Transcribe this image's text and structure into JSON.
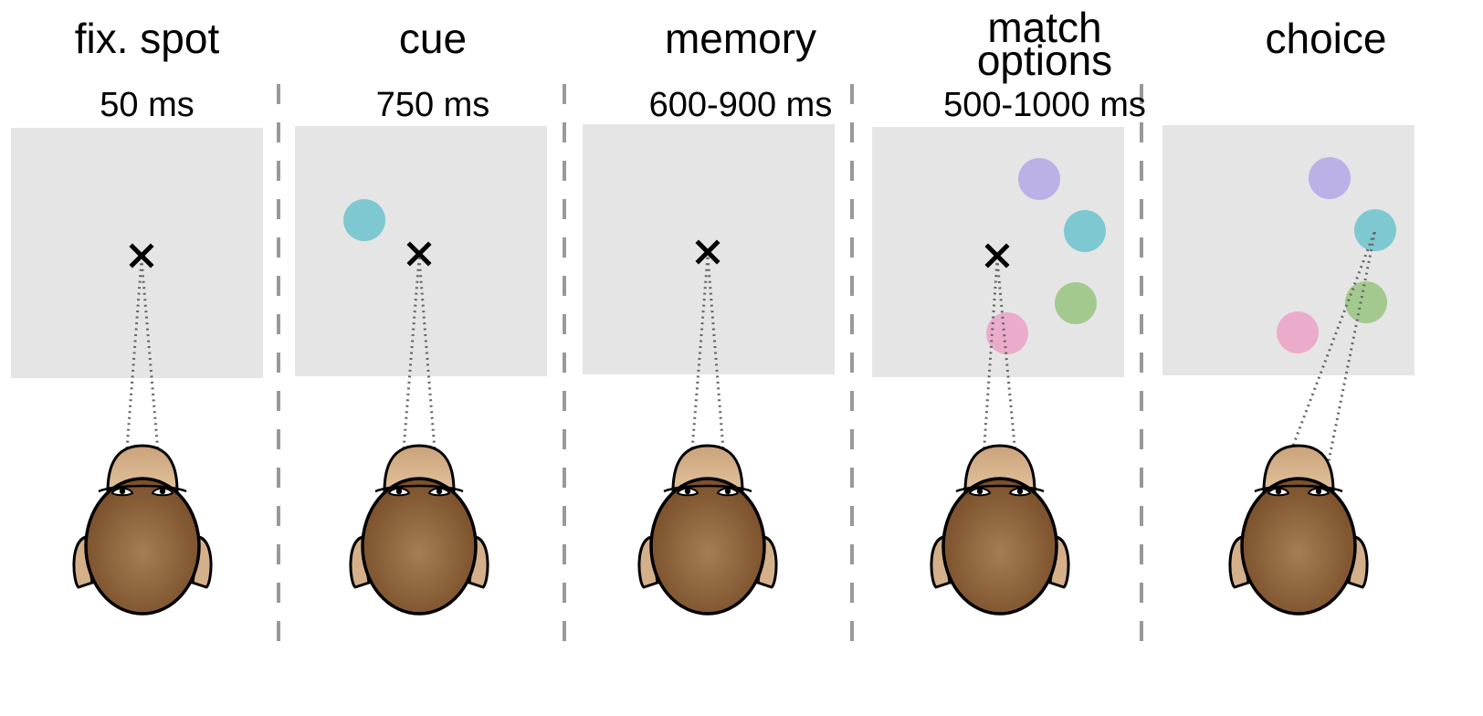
{
  "figure": {
    "phases": [
      {
        "title_lines": [
          "fix. spot"
        ],
        "duration": "50 ms",
        "targets": []
      },
      {
        "title_lines": [
          "cue"
        ],
        "duration": "750 ms",
        "targets": [
          "cyan"
        ]
      },
      {
        "title_lines": [
          "memory"
        ],
        "duration": "600-900 ms",
        "targets": []
      },
      {
        "title_lines": [
          "match",
          "options"
        ],
        "duration": "500-1000 ms",
        "targets": [
          "purple",
          "cyan",
          "green",
          "pink"
        ]
      },
      {
        "title_lines": [
          "choice"
        ],
        "duration": "",
        "targets": [
          "purple",
          "cyan",
          "green",
          "pink"
        ]
      }
    ],
    "gaze": [
      "fixation",
      "fixation",
      "fixation",
      "fixation",
      "cyan-target"
    ],
    "colors": {
      "screen": "#e5e5e5",
      "divider": "#999999",
      "cyan": "#7ec8d1",
      "purple": "#bcb0e6",
      "green": "#a3c98e",
      "pink": "#ebaccb",
      "head_dark": "#7a4f2a",
      "head_light": "#a57e54",
      "muzzle": "#d6b38c",
      "ear": "#d4b08a"
    },
    "fixation_symbol": "×",
    "fixation_icon": "cross-icon",
    "subject_icon": "monkey-head-icon"
  }
}
